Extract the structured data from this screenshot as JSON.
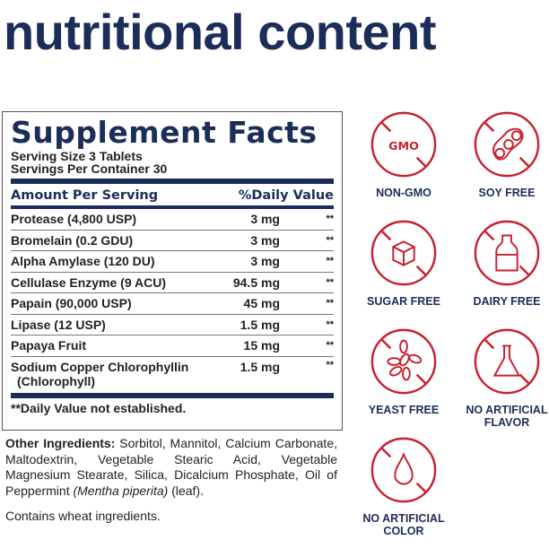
{
  "title": "nutritional content",
  "facts": {
    "heading": "Supplement Facts",
    "serving_size": "Serving Size 3 Tablets",
    "servings_per_container": "Servings Per Container 30",
    "col_amount": "Amount Per Serving",
    "col_dv": "%Daily Value",
    "rows": [
      {
        "name": "Protease (4,800 USP)",
        "amount": "3 mg",
        "dv": "**"
      },
      {
        "name": "Bromelain (0.2 GDU)",
        "amount": "3 mg",
        "dv": "**"
      },
      {
        "name": "Alpha Amylase (120 DU)",
        "amount": "3 mg",
        "dv": "**"
      },
      {
        "name": "Cellulase Enzyme (9 ACU)",
        "amount": "94.5 mg",
        "dv": "**"
      },
      {
        "name": "Papain (90,000 USP)",
        "amount": "45 mg",
        "dv": "**"
      },
      {
        "name": "Lipase (12 USP)",
        "amount": "1.5 mg",
        "dv": "**"
      },
      {
        "name": "Papaya Fruit",
        "amount": "15 mg",
        "dv": "**"
      },
      {
        "name": "Sodium Copper Chlorophyllin",
        "name2": "(Chlorophyll)",
        "amount": "1.5 mg",
        "dv": "**"
      }
    ],
    "footnote": "**Daily Value not established."
  },
  "other": {
    "label": "Other Ingredients:",
    "text1": " Sorbitol, Mannitol, Calcium Carbonate, Maltodextrin, Vegetable Stearic Acid, Vegetable Magnesium Stearate, Silica, Dicalcium Phosphate, Oil of Peppermint ",
    "italic": "(Mentha piperita)",
    "text2": " (leaf)."
  },
  "contains": "Contains wheat ingredients.",
  "badges": [
    {
      "label": "NON-GMO",
      "icon": "gmo-icon",
      "gmo_text": "GMO"
    },
    {
      "label": "SOY FREE",
      "icon": "soybean-icon"
    },
    {
      "label": "SUGAR FREE",
      "icon": "sugar-cube-icon"
    },
    {
      "label": "DAIRY FREE",
      "icon": "milk-bottle-icon"
    },
    {
      "label": "YEAST FREE",
      "icon": "yeast-icon"
    },
    {
      "label": "NO ARTIFICIAL",
      "label2": "FLAVOR",
      "icon": "flask-icon"
    },
    {
      "label": "NO ARTIFICIAL",
      "label2": "COLOR",
      "icon": "drop-icon"
    }
  ],
  "colors": {
    "navy": "#1b2d59",
    "red": "#c8202f"
  }
}
